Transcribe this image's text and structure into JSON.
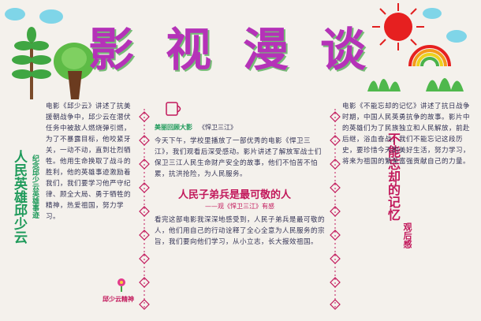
{
  "title": {
    "chars": [
      "影",
      "视",
      "漫",
      "谈"
    ]
  },
  "left_column": {
    "vertical_heading": "人民英雄邱少云",
    "vertical_subheading": "纪念邱少云英雄事迹",
    "text": "电影《邱少云》讲述了抗美援朝战争中，邱少云在潜伏任务中被敌人燃烧弹引燃，为了不暴露目标，他咬紧牙关，一动不动，直到壮烈牺牲。他用生命换取了战斗的胜利，他的英雄事迹激励着我们，我们要学习他严守纪律、顾全大局、勇于牺牲的精神，热爱祖国，努力学习。",
    "footer": "邱少云精神"
  },
  "middle_column": {
    "label": "美丽回顾大影",
    "subtitle_line": "《悍卫三江》",
    "text_top": "今天下午，学校里播放了一部优秀的电影《悍卫三江》，我们观看后深受感动。影片讲述了解放军战士们保卫三江人民生命财产安全的故事，他们不怕苦不怕累，抗洪抢险，为人民服务。",
    "banner": "人民子弟兵是最可敬的人",
    "banner_sub": "——观《悍卫三江》有感",
    "text_bottom": "看完这部电影我深深地感受到，人民子弟兵是最可敬的人，他们用自己的行动诠释了全心全意为人民服务的宗旨，我们要向他们学习，从小立志，长大报效祖国。"
  },
  "right_column": {
    "vertical_heading": "不能忘却的记忆",
    "sub": "观后感",
    "text": "电影《不能忘却的记忆》讲述了抗日战争时期，中国人民英勇抗争的故事。影片中的英雄们为了民族独立和人民解放，前赴后继，浴血奋战，我们不能忘记这段历史，要珍惜今天的美好生活，努力学习，将来为祖国的繁荣富强贡献自己的力量。"
  },
  "colors": {
    "title": "#b532b8",
    "accent": "#c2185b",
    "heading_green": "#1e9a5a",
    "border": "#c2185b"
  },
  "decorations": [
    "tree-icon",
    "sun-icon",
    "rainbow-icon",
    "grass-icon",
    "cloud-icon",
    "cup-icon",
    "flower-icon"
  ]
}
